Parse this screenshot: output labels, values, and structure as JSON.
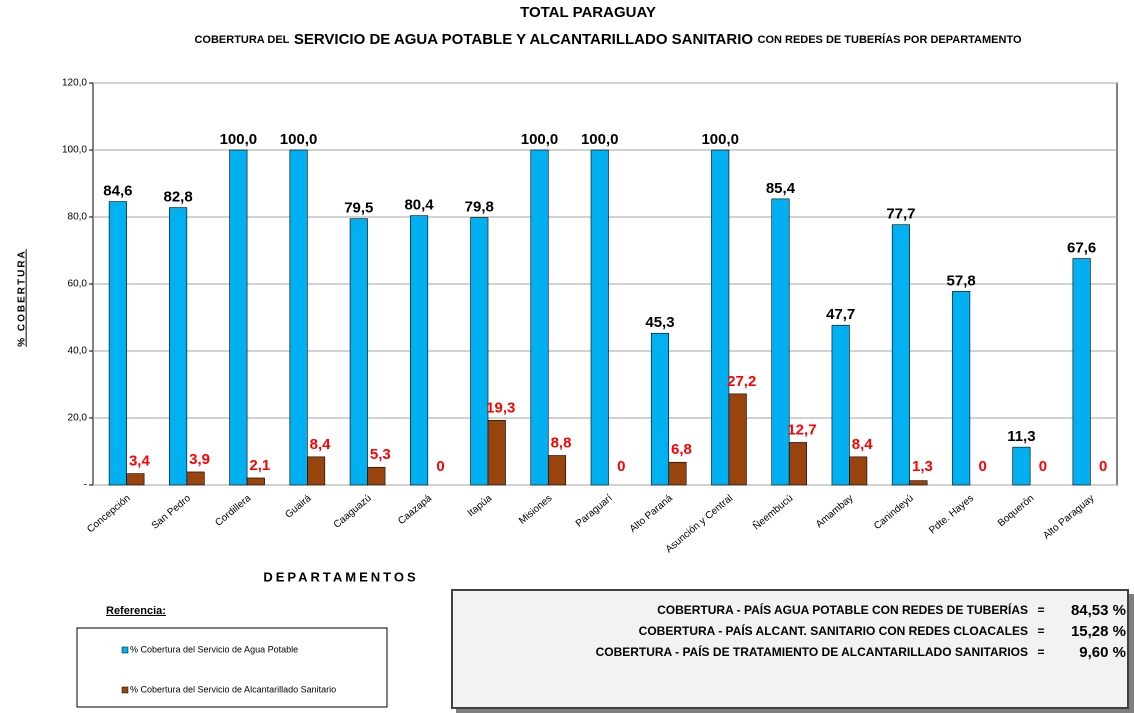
{
  "chart_data": {
    "type": "bar",
    "title": "TOTAL PARAGUAY",
    "subtitle_parts": [
      "COBERTURA DEL",
      "SERVICIO  DE AGUA POTABLE Y ALCANTARILLADO SANITARIO",
      "CON REDES DE TUBERÍAS POR DEPARTAMENTO"
    ],
    "y_label": "% COBERTURA",
    "x_label": "DEPARTAMENTOS",
    "legend_title": "Referencia:",
    "categories": [
      "Concepción",
      "San Pedro",
      "Cordillera",
      "Guairá",
      "Caaguazú",
      "Caazapá",
      "Itapúa",
      "Misiones",
      "Paraguarí",
      "Alto Paraná",
      "Asunción y Central",
      "Ñeembucú",
      "Amambay",
      "Canindeyú",
      "Pdte. Hayes",
      "Boquerón",
      "Alto Paraguay"
    ],
    "series": [
      {
        "name": "% Cobertura del Servicio de Agua Potable",
        "color": "#00b0f0",
        "values": [
          84.6,
          82.8,
          100,
          100,
          79.5,
          80.4,
          79.8,
          100,
          100,
          45.3,
          100,
          85.4,
          47.7,
          77.7,
          57.8,
          11.3,
          67.6
        ],
        "value_labels": [
          "84,6",
          "82,8",
          "100,0",
          "100,0",
          "79,5",
          "80,4",
          "79,8",
          "100,0",
          "100,0",
          "45,3",
          "100,0",
          "85,4",
          "47,7",
          "77,7",
          "57,8",
          "11,3",
          "67,6"
        ],
        "label_color": "#000000"
      },
      {
        "name": "% Cobertura del Servicio de Alcantarillado Sanitario",
        "color": "#99440f",
        "values": [
          3.4,
          3.9,
          2.1,
          8.4,
          5.3,
          0,
          19.3,
          8.8,
          0,
          6.8,
          27.2,
          12.7,
          8.4,
          1.3,
          0,
          0,
          0
        ],
        "value_labels": [
          "3,4",
          "3,9",
          "2,1",
          "8,4",
          "5,3",
          "0",
          "19,3",
          "8,8",
          "0",
          "6,8",
          "27,2",
          "12,7",
          "8,4",
          "1,3",
          "0",
          "0",
          "0"
        ],
        "label_color": "#ff0000"
      }
    ],
    "ylim": [
      0,
      120
    ],
    "yticks": [
      {
        "value": 0,
        "label": "-"
      },
      {
        "value": 20,
        "label": "20,0"
      },
      {
        "value": 40,
        "label": "40,0"
      },
      {
        "value": 60,
        "label": "60,0"
      },
      {
        "value": 80,
        "label": "80,0"
      },
      {
        "value": 100,
        "label": "100,0"
      },
      {
        "value": 120,
        "label": "120,0"
      }
    ],
    "grid": true,
    "summary": [
      {
        "label": "COBERTURA - PAÍS AGUA POTABLE CON REDES DE TUBERÍAS",
        "sign": "=",
        "value": "84,53 %"
      },
      {
        "label": "COBERTURA - PAÍS  ALCANT. SANITARIO CON REDES CLOACALES",
        "sign": "=",
        "value": "15,28 %"
      },
      {
        "label": "COBERTURA - PAÍS  DE TRATAMIENTO  DE  ALCANTARILLADO SANITARIOS",
        "sign": "=",
        "value": "9,60 %"
      }
    ]
  }
}
